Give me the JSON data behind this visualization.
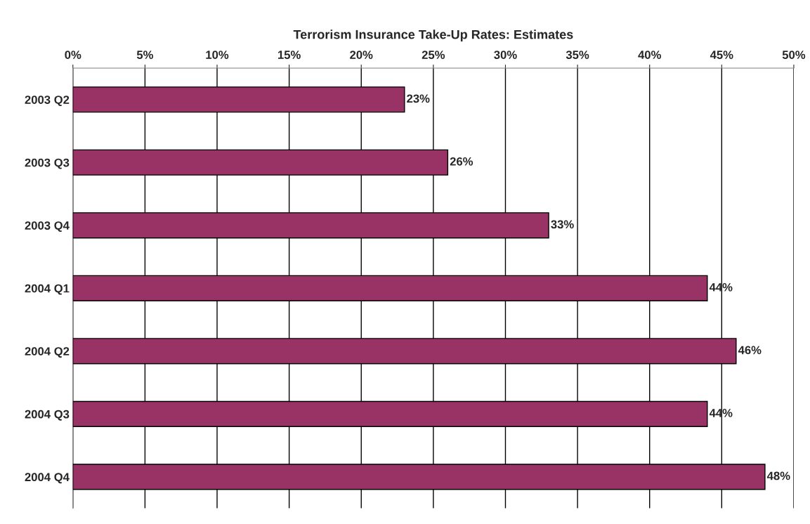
{
  "chart_data": {
    "type": "bar",
    "orientation": "horizontal",
    "title": "Terrorism Insurance Take-Up Rates: Estimates",
    "categories": [
      "2003 Q2",
      "2003 Q3",
      "2003 Q4",
      "2004 Q1",
      "2004 Q2",
      "2004 Q3",
      "2004 Q4"
    ],
    "values": [
      23,
      26,
      33,
      44,
      46,
      44,
      48
    ],
    "value_labels": [
      "23%",
      "26%",
      "33%",
      "44%",
      "46%",
      "44%",
      "48%"
    ],
    "color": "#993366",
    "xlim": [
      0,
      50
    ],
    "xticks": [
      {
        "value": 0,
        "label": "0%"
      },
      {
        "value": 5,
        "label": "5%"
      },
      {
        "value": 10,
        "label": "10%"
      },
      {
        "value": 15,
        "label": "15%"
      },
      {
        "value": 20,
        "label": "20%"
      },
      {
        "value": 25,
        "label": "25%"
      },
      {
        "value": 30,
        "label": "30%"
      },
      {
        "value": 35,
        "label": "35%"
      },
      {
        "value": 40,
        "label": "40%"
      },
      {
        "value": 45,
        "label": "45%"
      },
      {
        "value": 50,
        "label": "50%"
      }
    ],
    "grid": "x"
  }
}
